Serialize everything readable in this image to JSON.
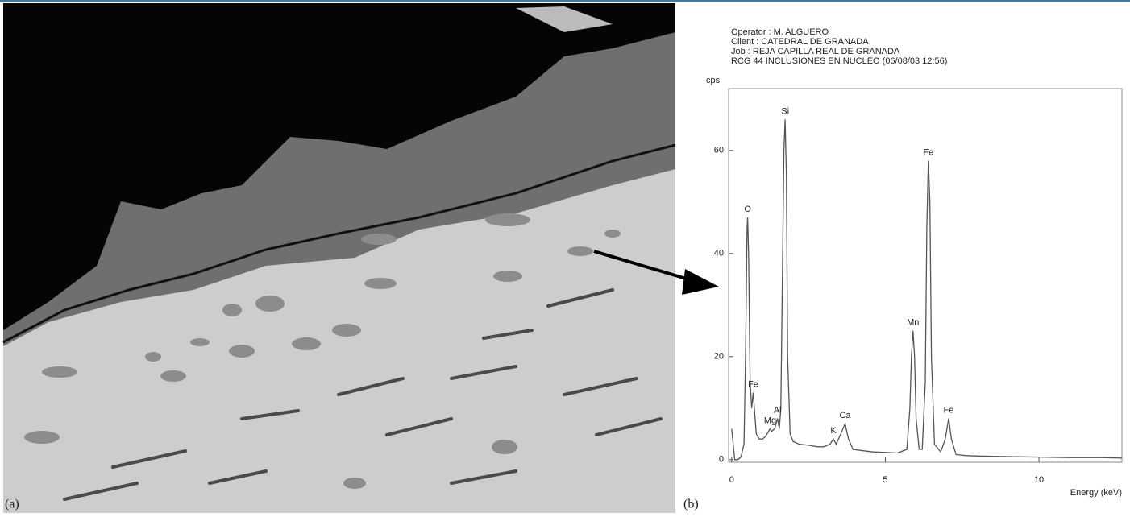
{
  "figure_labels": [
    "(a)",
    "(b)"
  ],
  "chart_data": {
    "type": "line",
    "header": [
      "Operator : M. ALGUERO",
      "Client : CATEDRAL DE GRANADA",
      "Job : REJA CAPILLA REAL DE GRANADA",
      "RCG 44 INCLUSIONES EN NUCLEO (06/08/03 12:56)"
    ],
    "ylabel": "cps",
    "xlabel": "Energy (keV)",
    "x": [
      0,
      0.05,
      0.1,
      0.2,
      0.3,
      0.4,
      0.45,
      0.5,
      0.52,
      0.55,
      0.6,
      0.65,
      0.7,
      0.75,
      0.8,
      0.9,
      1.0,
      1.1,
      1.2,
      1.25,
      1.3,
      1.4,
      1.49,
      1.55,
      1.6,
      1.65,
      1.7,
      1.74,
      1.78,
      1.82,
      1.9,
      2.0,
      2.2,
      2.5,
      2.8,
      3.0,
      3.2,
      3.31,
      3.4,
      3.55,
      3.69,
      3.8,
      3.95,
      4.2,
      4.6,
      5.0,
      5.4,
      5.7,
      5.8,
      5.85,
      5.9,
      5.95,
      6.0,
      6.1,
      6.2,
      6.3,
      6.35,
      6.4,
      6.45,
      6.5,
      6.6,
      6.8,
      6.95,
      7.06,
      7.15,
      7.3,
      7.6,
      8,
      9,
      10,
      11,
      12,
      12.7
    ],
    "series": [
      {
        "color": "#555555",
        "values": [
          6,
          3,
          0,
          0,
          0.5,
          3,
          20,
          45,
          47,
          40,
          15,
          10,
          13,
          9,
          5,
          4,
          4,
          4.5,
          5.5,
          6,
          5.5,
          6,
          8,
          6,
          10,
          35,
          60,
          66,
          55,
          20,
          5,
          3.5,
          3,
          2.8,
          2.5,
          2.5,
          3,
          4,
          3,
          5,
          7,
          4,
          2,
          1.8,
          1.5,
          1.4,
          1.3,
          2,
          10,
          20,
          25,
          20,
          8,
          2,
          2,
          15,
          45,
          58,
          50,
          20,
          3,
          1.5,
          4,
          8,
          4,
          1,
          0.8,
          0.7,
          0.6,
          0.5,
          0.4,
          0.4,
          0.3
        ]
      }
    ],
    "annotations": [
      {
        "text": "O",
        "x": 0.52,
        "y": 47
      },
      {
        "text": "Fe",
        "x": 0.7,
        "y": 13
      },
      {
        "text": "Mg",
        "x": 1.25,
        "y": 6
      },
      {
        "text": "Al",
        "x": 1.49,
        "y": 8
      },
      {
        "text": "Si",
        "x": 1.74,
        "y": 66
      },
      {
        "text": "K",
        "x": 3.31,
        "y": 4
      },
      {
        "text": "Ca",
        "x": 3.69,
        "y": 7
      },
      {
        "text": "Mn",
        "x": 5.9,
        "y": 25
      },
      {
        "text": "Fe",
        "x": 6.4,
        "y": 58
      },
      {
        "text": "Fe",
        "x": 7.06,
        "y": 8
      }
    ],
    "xlim": [
      -0.1,
      12.7
    ],
    "ylim": [
      -0.5,
      72
    ],
    "xticks": [
      0,
      5,
      10
    ],
    "yticks": [
      0,
      20,
      40,
      60
    ]
  }
}
